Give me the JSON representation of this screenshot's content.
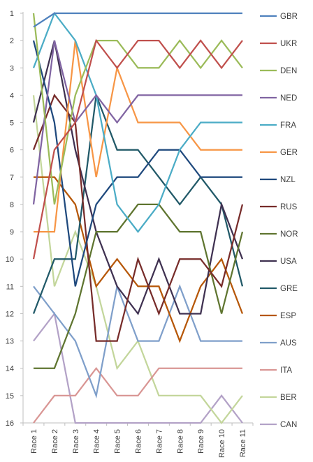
{
  "chart_data": {
    "type": "line",
    "title": "",
    "xlabel": "",
    "ylabel": "",
    "categories": [
      "Race 1",
      "Race 2",
      "Race 3",
      "Race 4",
      "Race 5",
      "Race 6",
      "Race 7",
      "Race 8",
      "Race 9",
      "Race 10",
      "Race 11"
    ],
    "ylim": [
      1,
      16
    ],
    "y_reversed": true,
    "y_ticks": [
      1,
      2,
      3,
      4,
      5,
      6,
      7,
      8,
      9,
      10,
      11,
      12,
      13,
      14,
      15,
      16
    ],
    "grid": false,
    "legend_position": "right",
    "series": [
      {
        "name": "GBR",
        "color": "#4F81BD",
        "values": [
          1.5,
          1,
          1,
          1,
          1,
          1,
          1,
          1,
          1,
          1,
          1
        ]
      },
      {
        "name": "UKR",
        "color": "#C0504D",
        "values": [
          10,
          6,
          5,
          2,
          3,
          2,
          2,
          3,
          2,
          3,
          2
        ]
      },
      {
        "name": "DEN",
        "color": "#9BBB59",
        "values": [
          1,
          8,
          4,
          2,
          2,
          3,
          3,
          2,
          3,
          2,
          3
        ]
      },
      {
        "name": "NED",
        "color": "#8064A2",
        "values": [
          8,
          2,
          5,
          4,
          5,
          4,
          4,
          4,
          4,
          4,
          4
        ]
      },
      {
        "name": "FRA",
        "color": "#4BACC6",
        "values": [
          3,
          1,
          2,
          4,
          8,
          9,
          8,
          6,
          5,
          5,
          5
        ]
      },
      {
        "name": "GER",
        "color": "#F79646",
        "values": [
          9,
          9,
          2,
          7,
          3,
          5,
          5,
          5,
          6,
          6,
          6
        ]
      },
      {
        "name": "NZL",
        "color": "#1F497D",
        "values": [
          2,
          5,
          11,
          8,
          7,
          7,
          6,
          6,
          7,
          7,
          7
        ]
      },
      {
        "name": "RUS",
        "color": "#772C2A",
        "values": [
          6,
          4,
          5,
          13,
          13,
          10,
          12,
          10,
          10,
          11,
          8
        ]
      },
      {
        "name": "NOR",
        "color": "#5F7530",
        "values": [
          14,
          14,
          12,
          9,
          9,
          8,
          8,
          9,
          9,
          12,
          9
        ]
      },
      {
        "name": "USA",
        "color": "#3F3151",
        "values": [
          5,
          2,
          6,
          9,
          11,
          12,
          10,
          12,
          12,
          8,
          10
        ]
      },
      {
        "name": "GRE",
        "color": "#215968",
        "values": [
          12,
          10,
          10,
          4,
          6,
          6,
          7,
          8,
          7,
          8,
          11
        ]
      },
      {
        "name": "ESP",
        "color": "#B65708",
        "values": [
          7,
          7,
          8,
          11,
          10,
          11,
          11,
          13,
          11,
          10,
          12
        ]
      },
      {
        "name": "AUS",
        "color": "#7F9FCA",
        "values": [
          11,
          12,
          13,
          15,
          11,
          13,
          13,
          11,
          13,
          13,
          13
        ]
      },
      {
        "name": "ITA",
        "color": "#D99694",
        "values": [
          16,
          15,
          15,
          14,
          15,
          15,
          14,
          14,
          14,
          14,
          14
        ]
      },
      {
        "name": "BER",
        "color": "#C3D69B",
        "values": [
          4,
          11,
          9,
          11,
          14,
          13,
          15,
          15,
          15,
          16,
          15
        ]
      },
      {
        "name": "CAN",
        "color": "#B3A2C7",
        "values": [
          13,
          12,
          16,
          16,
          16,
          16,
          16,
          16,
          16,
          15,
          16
        ]
      }
    ]
  }
}
